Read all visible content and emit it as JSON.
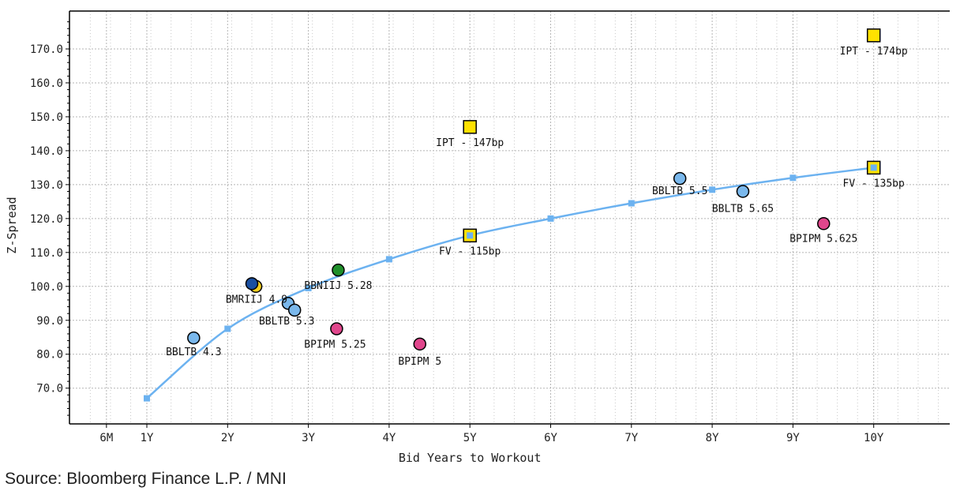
{
  "chart_data": {
    "type": "scatter",
    "xlabel": "Bid Years to Workout",
    "ylabel": "Z-Spread",
    "ylim": [
      60,
      178
    ],
    "grid": true,
    "x_ticks": [
      {
        "v": 0.5,
        "label": "6M"
      },
      {
        "v": 1,
        "label": "1Y"
      },
      {
        "v": 2,
        "label": "2Y"
      },
      {
        "v": 3,
        "label": "3Y"
      },
      {
        "v": 4,
        "label": "4Y"
      },
      {
        "v": 5,
        "label": "5Y"
      },
      {
        "v": 6,
        "label": "6Y"
      },
      {
        "v": 7,
        "label": "7Y"
      },
      {
        "v": 8,
        "label": "8Y"
      },
      {
        "v": 9,
        "label": "9Y"
      },
      {
        "v": 10,
        "label": "10Y"
      }
    ],
    "y_ticks": [
      {
        "v": 70,
        "label": "70.0"
      },
      {
        "v": 80,
        "label": "80.0"
      },
      {
        "v": 90,
        "label": "90.0"
      },
      {
        "v": 100,
        "label": "100.0"
      },
      {
        "v": 110,
        "label": "110.0"
      },
      {
        "v": 120,
        "label": "120.0"
      },
      {
        "v": 130,
        "label": "130.0"
      },
      {
        "v": 140,
        "label": "140.0"
      },
      {
        "v": 150,
        "label": "150.0"
      },
      {
        "v": 160,
        "label": "160.0"
      },
      {
        "v": 170,
        "label": "170.0"
      }
    ],
    "curve": {
      "name": "fitted curve",
      "color": "#6cb2f0",
      "points": [
        [
          1,
          67
        ],
        [
          2,
          87.5
        ],
        [
          3,
          99.5
        ],
        [
          4,
          108
        ],
        [
          5,
          115
        ],
        [
          6,
          120
        ],
        [
          7,
          124.5
        ],
        [
          8,
          128.5
        ],
        [
          9,
          132
        ],
        [
          10,
          135
        ]
      ]
    },
    "squares": [
      {
        "x": 5,
        "y": 147,
        "label": "IPT - 147bp",
        "color": "#ffe100"
      },
      {
        "x": 10,
        "y": 174,
        "label": "IPT - 174bp",
        "color": "#ffe100"
      },
      {
        "x": 5,
        "y": 115,
        "label": "FV - 115bp",
        "color": "#ffe100"
      },
      {
        "x": 10,
        "y": 135,
        "label": "FV - 135bp",
        "color": "#ffe100"
      }
    ],
    "points": [
      {
        "x": 1.58,
        "y": 84.8,
        "label": "BBLTB 4.3",
        "color": "#7ab8ec"
      },
      {
        "x": 2.35,
        "y": 100,
        "label": "",
        "color": "#f5d020"
      },
      {
        "x": 2.3,
        "y": 100.8,
        "label": "BMRIIJ 4.9",
        "color": "#1a4fa0"
      },
      {
        "x": 2.75,
        "y": 95,
        "label": "",
        "color": "#7ab8ec"
      },
      {
        "x": 2.83,
        "y": 93,
        "label": "BBLTB 5.3",
        "color": "#7ab8ec"
      },
      {
        "x": 3.37,
        "y": 104.8,
        "label": "BBNIIJ 5.28",
        "color": "#1f8f2a"
      },
      {
        "x": 3.35,
        "y": 87.5,
        "label": "BPIPM 5.25",
        "color": "#e0468c"
      },
      {
        "x": 4.38,
        "y": 83,
        "label": "BPIPM 5",
        "color": "#e0468c"
      },
      {
        "x": 7.6,
        "y": 131.8,
        "label": "BBLTB 5.5",
        "color": "#7ab8ec"
      },
      {
        "x": 8.38,
        "y": 128,
        "label": "BBLTB 5.65",
        "color": "#7ab8ec"
      },
      {
        "x": 9.38,
        "y": 118.5,
        "label": "BPIPM 5.625",
        "color": "#e0468c"
      }
    ]
  },
  "source": "Source: Bloomberg Finance L.P. / MNI"
}
